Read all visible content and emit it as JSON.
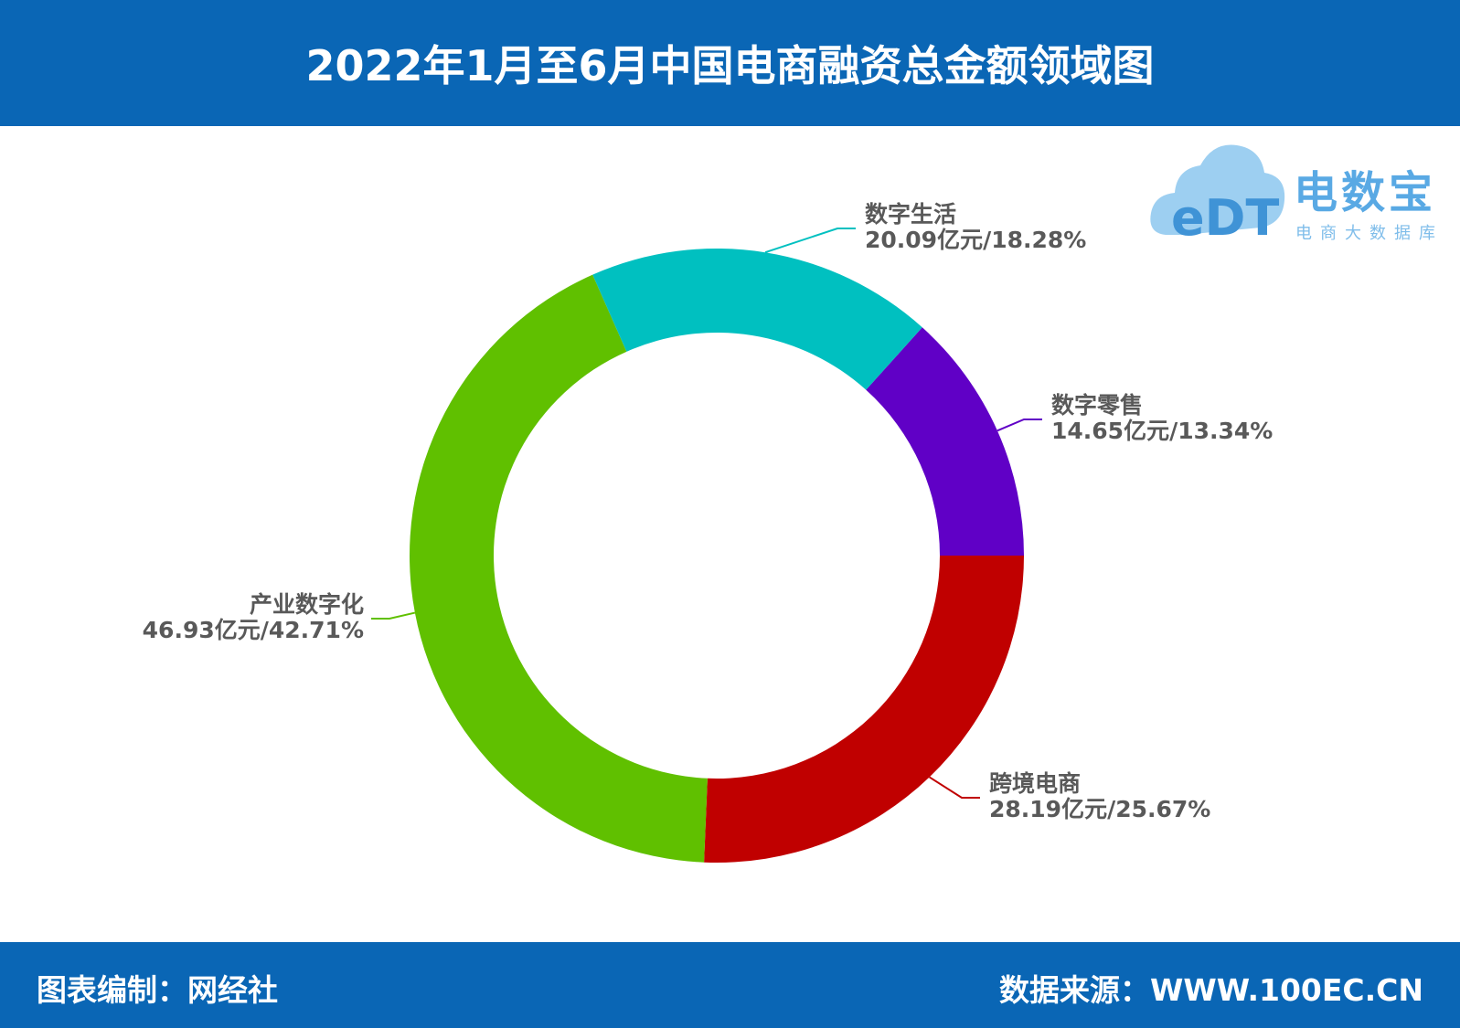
{
  "header": {
    "title": "2022年1月至6月中国电商融资总金额领域图"
  },
  "logo": {
    "icon_text": "eDT",
    "brand": "电数宝",
    "subtitle": "电商大数据库",
    "color": "#59a9e4"
  },
  "footer": {
    "credit": "图表编制：网经社",
    "source": "数据来源：WWW.100EC.CN"
  },
  "colors": {
    "header_bg": "#0a66b5",
    "label_text": "#595959"
  },
  "chart_data": {
    "type": "pie",
    "donut": true,
    "unit": "亿元",
    "series": [
      {
        "name": "数字零售",
        "value": 14.65,
        "percent": 13.34,
        "label": "14.65亿元/13.34%",
        "color": "#6000c6"
      },
      {
        "name": "跨境电商",
        "value": 28.19,
        "percent": 25.67,
        "label": "28.19亿元/25.67%",
        "color": "#c00000"
      },
      {
        "name": "产业数字化",
        "value": 46.93,
        "percent": 42.71,
        "label": "46.93亿元/42.71%",
        "color": "#60c000"
      },
      {
        "name": "数字生活",
        "value": 20.09,
        "percent": 18.28,
        "label": "20.09亿元/18.28%",
        "color": "#00c0c0"
      }
    ]
  }
}
